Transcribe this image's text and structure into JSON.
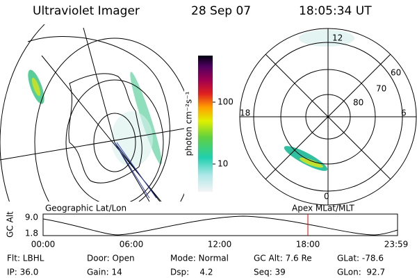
{
  "header": {
    "title": "Ultraviolet Imager",
    "date": "28 Sep 07",
    "time": "18:05:34 UT"
  },
  "colorbar": {
    "label": "photon cm⁻²s⁻¹",
    "ticks": [
      "100",
      "10"
    ]
  },
  "polar": {
    "mlt": [
      "12",
      "18",
      "6",
      "0"
    ],
    "mlat": [
      "60",
      "70",
      "80"
    ]
  },
  "timeline": {
    "left_label": "Geographic Lat/Lon",
    "right_label": "Apex MLat/MLT",
    "axis_label": "GC Alt",
    "yticks": [
      "9.0",
      "1.8"
    ],
    "xticks": [
      "00:00",
      "06:00",
      "12:00",
      "18:00",
      "23:59"
    ]
  },
  "info": [
    [
      "Flt: LBHL",
      "Door: Open",
      "Mode: Normal",
      "GC Alt: 7.6 Re",
      "GLat: -78.6"
    ],
    [
      "IP: 36.0",
      "Gain: 14",
      "Dsp:    4.2",
      "Seq: 39",
      "GLon:  92.7"
    ]
  ]
}
